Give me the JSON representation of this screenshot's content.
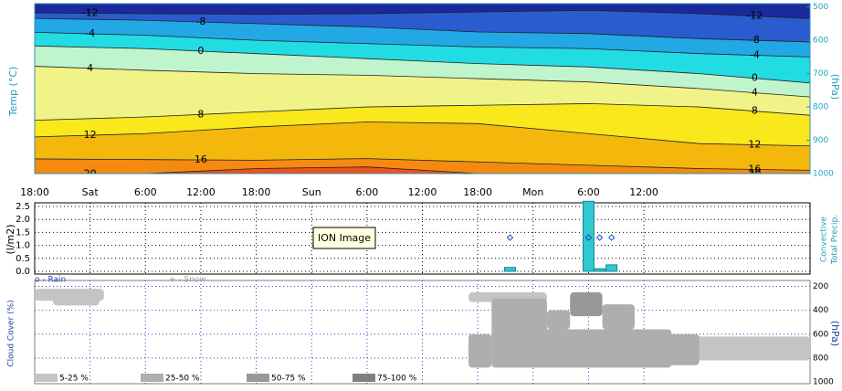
{
  "tooltip": "ION Image",
  "chart_data": [
    {
      "type": "contour",
      "y_label": "Temp (°C)",
      "y2_label": "(hPa)",
      "xlim": [
        0,
        84
      ],
      "xticks": [
        {
          "value": 0,
          "label": "18:00"
        },
        {
          "value": 6,
          "label": "Sat"
        },
        {
          "value": 12,
          "label": "6:00"
        },
        {
          "value": 18,
          "label": "12:00"
        },
        {
          "value": 24,
          "label": "18:00"
        },
        {
          "value": 30,
          "label": "Sun"
        },
        {
          "value": 36,
          "label": "6:00"
        },
        {
          "value": 42,
          "label": "12:00"
        },
        {
          "value": 48,
          "label": "18:00"
        },
        {
          "value": 54,
          "label": "Mon"
        },
        {
          "value": 60,
          "label": "6:00"
        },
        {
          "value": 66,
          "label": "12:00"
        }
      ],
      "y2lim": [
        490,
        1000
      ],
      "y2ticks": [
        500,
        600,
        700,
        800,
        900,
        1000
      ],
      "x": [
        0,
        12,
        24,
        36,
        48,
        60,
        72,
        84
      ],
      "levels": [
        -12,
        -8,
        -4,
        0,
        4,
        8,
        12,
        16,
        20
      ],
      "colors": [
        "#1a2a9c",
        "#2a5cd0",
        "#22a8e4",
        "#22dce4",
        "#c0f4cc",
        "#f0f488",
        "#f8e81c",
        "#f4b80c",
        "#f48a10",
        "#f0501a"
      ],
      "lines": [
        [
          518,
          520,
          522,
          520,
          515,
          510,
          520,
          535
        ],
        [
          534,
          540,
          550,
          560,
          575,
          580,
          595,
          605
        ],
        [
          576,
          585,
          600,
          610,
          620,
          625,
          640,
          650
        ],
        [
          617,
          625,
          640,
          655,
          670,
          680,
          700,
          728
        ],
        [
          678,
          690,
          700,
          705,
          715,
          725,
          745,
          770
        ],
        [
          840,
          830,
          815,
          800,
          795,
          790,
          800,
          825
        ],
        [
          890,
          880,
          860,
          845,
          850,
          880,
          910,
          917
        ],
        [
          956,
          958,
          960,
          955,
          965,
          975,
          985,
          990
        ],
        [
          1002,
          1000,
          985,
          980,
          1000,
          1002,
          1002,
          1002
        ]
      ]
    },
    {
      "type": "bar",
      "y_label": "(l/m2)",
      "ylim": [
        0,
        2.5
      ],
      "yticks": [
        {
          "value": 0,
          "label": "0.0"
        },
        {
          "value": 0.5,
          "label": "0.5"
        },
        {
          "value": 1,
          "label": "1.0"
        },
        {
          "value": 1.5,
          "label": "1.5"
        },
        {
          "value": 2,
          "label": "2.0"
        },
        {
          "value": 2.5,
          "label": "2.5"
        }
      ],
      "series": [
        {
          "name": "Convective",
          "color": "#2040c0",
          "x": [
            51.5,
            60,
            61.2,
            62.5
          ],
          "values": [
            1.3,
            1.3,
            1.3,
            1.3
          ]
        },
        {
          "name": "Total Precip.",
          "color": "#30c8d0",
          "x": [
            51.5,
            60,
            61.2,
            62.5
          ],
          "values": [
            0.15,
            2.7,
            0.1,
            0.25
          ]
        }
      ]
    },
    {
      "type": "cloud",
      "y_label": "Cloud Cover (%)",
      "y2_label": "(hPa)",
      "y2lim": [
        150,
        1000
      ],
      "y2ticks": [
        200,
        400,
        600,
        800,
        1000
      ],
      "precip_legend": [
        {
          "name": "o - Rain",
          "color": "#2040c0"
        },
        {
          "name": "+ - Snow",
          "color": "#a0a0a0"
        }
      ],
      "legend": [
        {
          "name": "5-25 %",
          "color": "#c4c4c4"
        },
        {
          "name": "25-50 %",
          "color": "#aeaeae"
        },
        {
          "name": "50-75 %",
          "color": "#989898"
        },
        {
          "name": "75-100 %",
          "color": "#808080"
        }
      ],
      "cells": [
        {
          "x": [
            0,
            7.5
          ],
          "p": [
            220,
            320
          ],
          "class": 0
        },
        {
          "x": [
            2,
            7
          ],
          "p": [
            300,
            360
          ],
          "class": 0
        },
        {
          "x": [
            47,
            55.5
          ],
          "p": [
            250,
            330
          ],
          "class": 0
        },
        {
          "x": [
            49.5,
            55.5
          ],
          "p": [
            300,
            600
          ],
          "class": 1
        },
        {
          "x": [
            47,
            49.5
          ],
          "p": [
            600,
            880
          ],
          "class": 1
        },
        {
          "x": [
            49.5,
            69
          ],
          "p": [
            560,
            880
          ],
          "class": 1
        },
        {
          "x": [
            55.5,
            58
          ],
          "p": [
            400,
            560
          ],
          "class": 1
        },
        {
          "x": [
            58,
            61.5
          ],
          "p": [
            250,
            450
          ],
          "class": 2
        },
        {
          "x": [
            61.5,
            65
          ],
          "p": [
            350,
            560
          ],
          "class": 1
        },
        {
          "x": [
            69,
            84
          ],
          "p": [
            620,
            820
          ],
          "class": 0
        },
        {
          "x": [
            65,
            72
          ],
          "p": [
            600,
            860
          ],
          "class": 1
        }
      ]
    }
  ]
}
